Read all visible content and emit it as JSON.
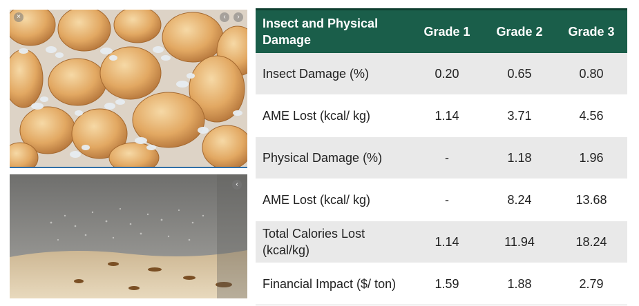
{
  "table": {
    "headers": [
      "Insect and Physical Damage",
      "Grade 1",
      "Grade 2",
      "Grade 3"
    ],
    "rows": [
      {
        "label": "Insect Damage (%)",
        "values": [
          "0.20",
          "0.65",
          "0.80"
        ]
      },
      {
        "label": "AME Lost (kcal/ kg)",
        "values": [
          "1.14",
          "3.71",
          "4.56"
        ]
      },
      {
        "label": "Physical Damage (%)",
        "values": [
          "-",
          "1.18",
          "1.96"
        ]
      },
      {
        "label": "AME Lost (kcal/ kg)",
        "values": [
          "-",
          "8.24",
          "13.68"
        ]
      },
      {
        "label": "Total Calories Lost (kcal/kg)",
        "values": [
          "1.14",
          "11.94",
          "18.24"
        ]
      },
      {
        "label": "Financial Impact ($/ ton)",
        "values": [
          "1.59",
          "1.88",
          "2.79"
        ]
      }
    ]
  },
  "colors": {
    "header_bg": "#1a5e4a",
    "row_alt_bg": "#e9e9e9",
    "photo_divider": "#2f6fa8"
  },
  "icons": {
    "top_photo": [
      "close-icon",
      "chevron-left-icon",
      "chevron-right-icon"
    ],
    "bottom_photo": [
      "chevron-left-icon"
    ]
  }
}
